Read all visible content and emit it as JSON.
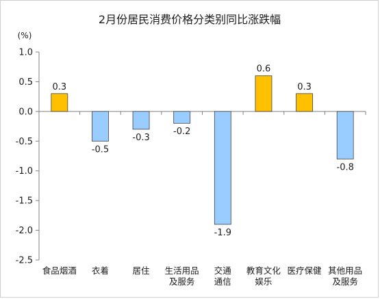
{
  "chart_data": {
    "type": "bar",
    "title": "2月份居民消费价格分类别同比涨跌幅",
    "unit_label": "(%)",
    "ylim": [
      -2.5,
      1.0
    ],
    "yticks": [
      "1.0",
      "0.5",
      "0.0",
      "-0.5",
      "-1.0",
      "-1.5",
      "-2.0",
      "-2.5"
    ],
    "ytick_values": [
      1.0,
      0.5,
      0.0,
      -0.5,
      -1.0,
      -1.5,
      -2.0,
      -2.5
    ],
    "categories": [
      [
        "食品烟酒"
      ],
      [
        "衣着"
      ],
      [
        "居住"
      ],
      [
        "生活用品",
        "及服务"
      ],
      [
        "交通",
        "通信"
      ],
      [
        "教育文化",
        "娱乐"
      ],
      [
        "医疗保健"
      ],
      [
        "其他用品",
        "及服务"
      ]
    ],
    "values": [
      0.3,
      -0.5,
      -0.3,
      -0.2,
      -1.9,
      0.6,
      0.3,
      -0.8
    ],
    "data_labels": [
      "0.3",
      "-0.5",
      "-0.3",
      "-0.2",
      "-1.9",
      "0.6",
      "0.3",
      "-0.8"
    ],
    "colors": {
      "positive": "#FFC000",
      "negative": "#99CCFF",
      "bar_stroke": "#404040",
      "axis": "#808080"
    },
    "grid": false,
    "legend": "none"
  }
}
